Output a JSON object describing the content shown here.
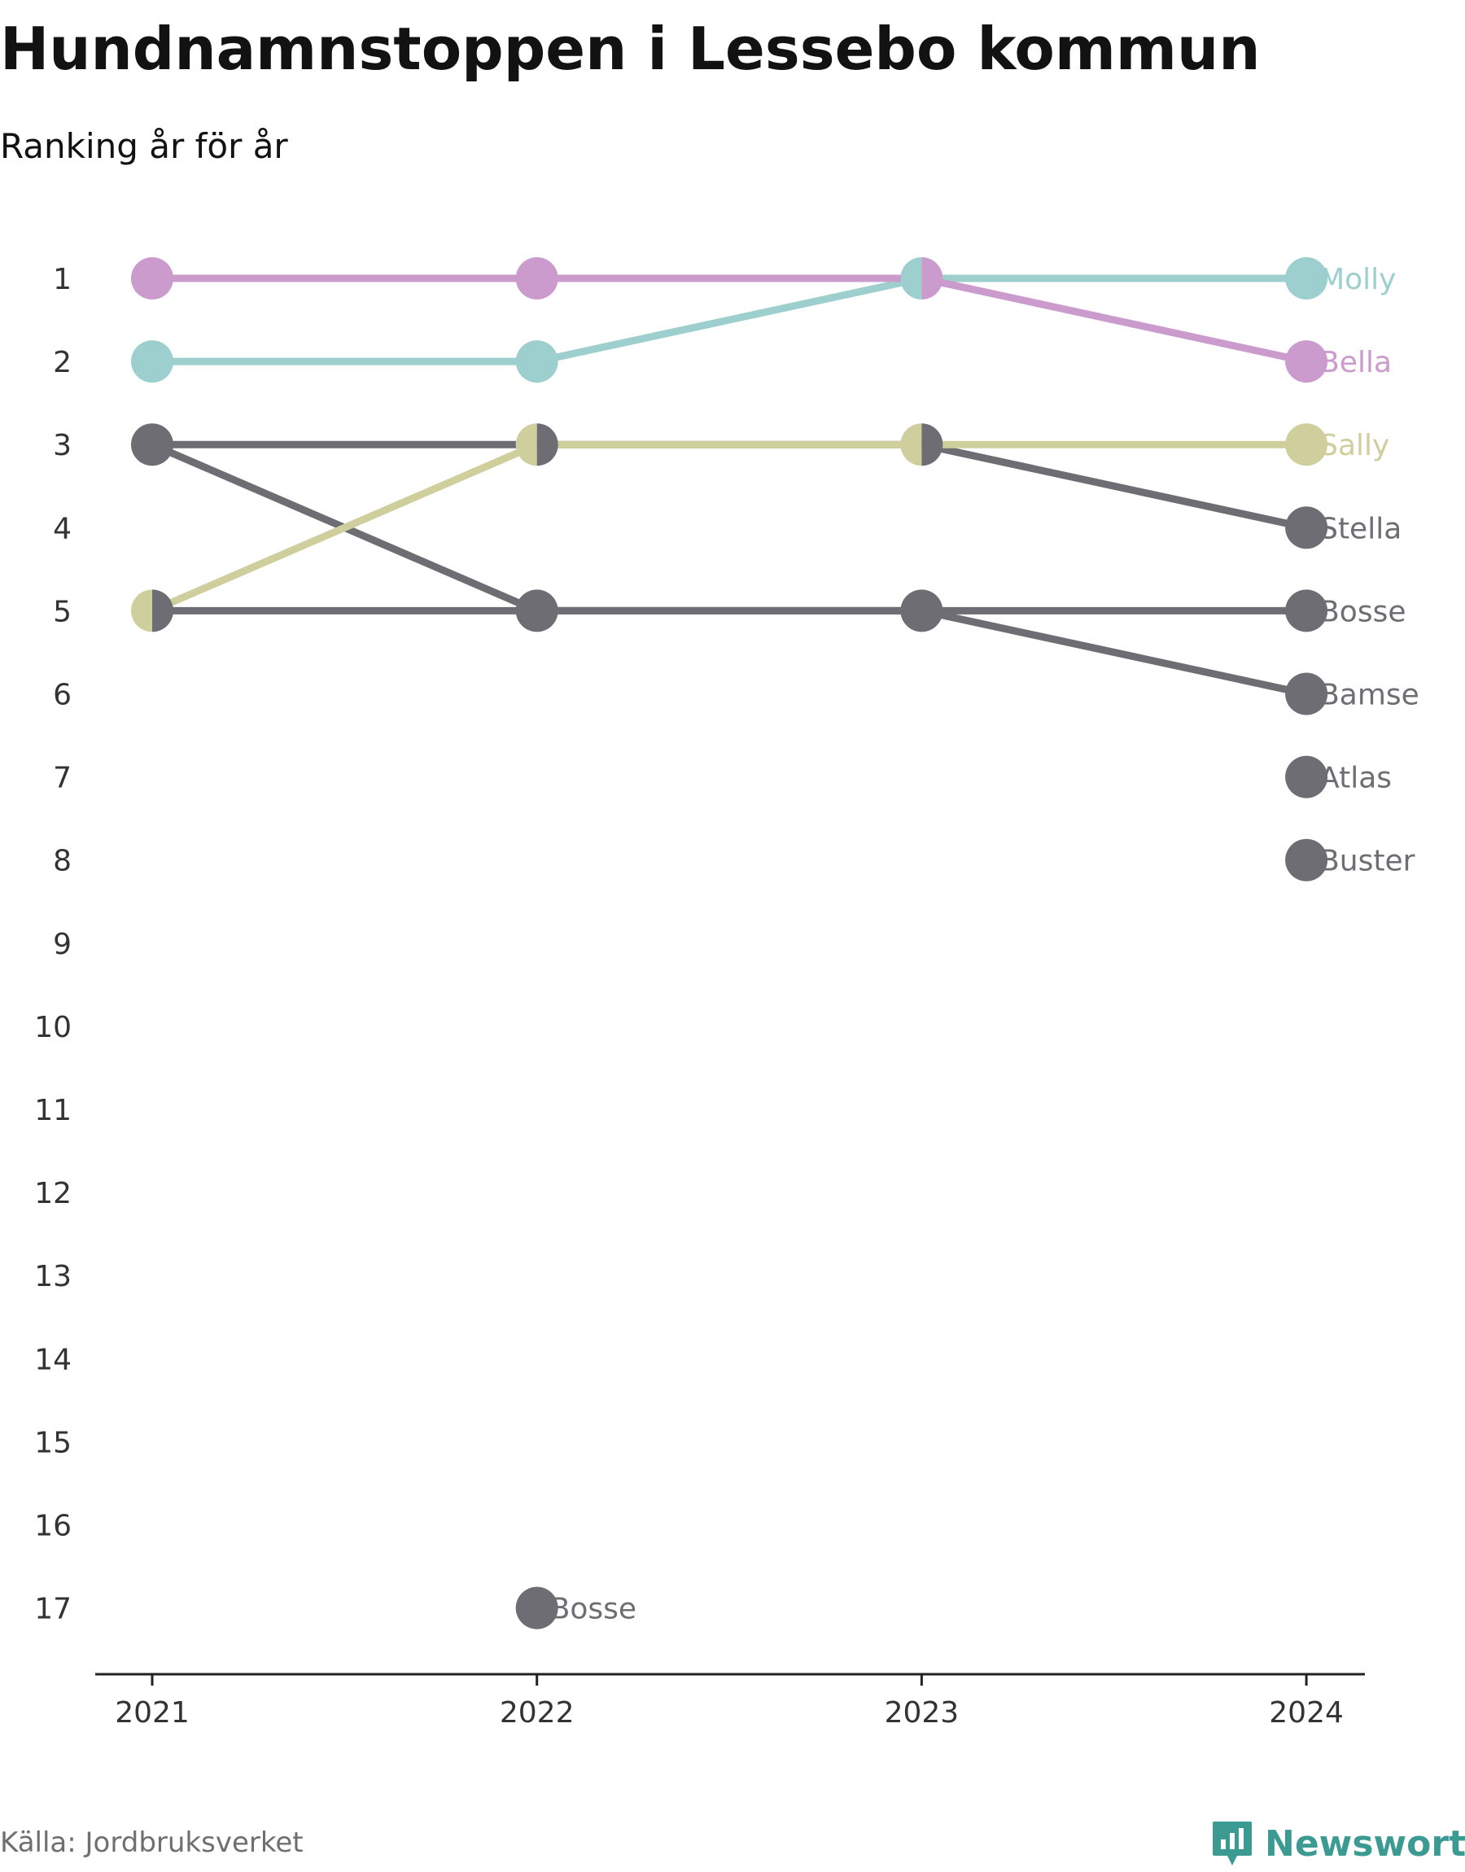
{
  "header": {
    "title": "Hundnamnstoppen i Lessebo kommun",
    "subtitle": "Ranking år för år"
  },
  "footer": {
    "source": "Källa: Jordbruksverket",
    "brand": "Newsworthy",
    "brand_icon": "newsworthy-logo-icon"
  },
  "colors": {
    "molly": "#9ccfce",
    "bella": "#cc9bcd",
    "sally": "#cfcf9d",
    "gray": "#6e6d74",
    "axis": "#222222",
    "tick_text": "#333333"
  },
  "chart_data": {
    "type": "line",
    "x": [
      "2021",
      "2022",
      "2023",
      "2024"
    ],
    "y_ticks": [
      "1",
      "2",
      "3",
      "4",
      "5",
      "6",
      "7",
      "8",
      "9",
      "10",
      "11",
      "12",
      "13",
      "14",
      "15",
      "16",
      "17"
    ],
    "ylim": [
      1,
      17
    ],
    "y_inverted": true,
    "grid": false,
    "legend": "end-labels",
    "series": [
      {
        "name": "Molly",
        "color": "#9ccfce",
        "values": [
          2,
          2,
          1,
          1
        ]
      },
      {
        "name": "Bella",
        "color": "#cc9bcd",
        "values": [
          1,
          1,
          1,
          2
        ]
      },
      {
        "name": "Sally",
        "color": "#cfcf9d",
        "values": [
          5,
          3,
          3,
          3
        ]
      },
      {
        "name": "Stella",
        "color": "#6e6d74",
        "values": [
          3,
          3,
          3,
          4
        ]
      },
      {
        "name": "Bosse",
        "color": "#6e6d74",
        "values": [
          5,
          5,
          5,
          5
        ]
      },
      {
        "name": "Bamse",
        "color": "#6e6d74",
        "values": [
          3,
          5,
          5,
          6
        ]
      },
      {
        "name": "Atlas",
        "color": "#6e6d74",
        "values": [
          null,
          null,
          null,
          7
        ]
      },
      {
        "name": "Buster",
        "color": "#6e6d74",
        "values": [
          null,
          null,
          null,
          8
        ]
      }
    ],
    "annotations": [
      {
        "text": "Bosse",
        "x": "2022",
        "y": 17,
        "color": "#6e6d74"
      }
    ]
  }
}
